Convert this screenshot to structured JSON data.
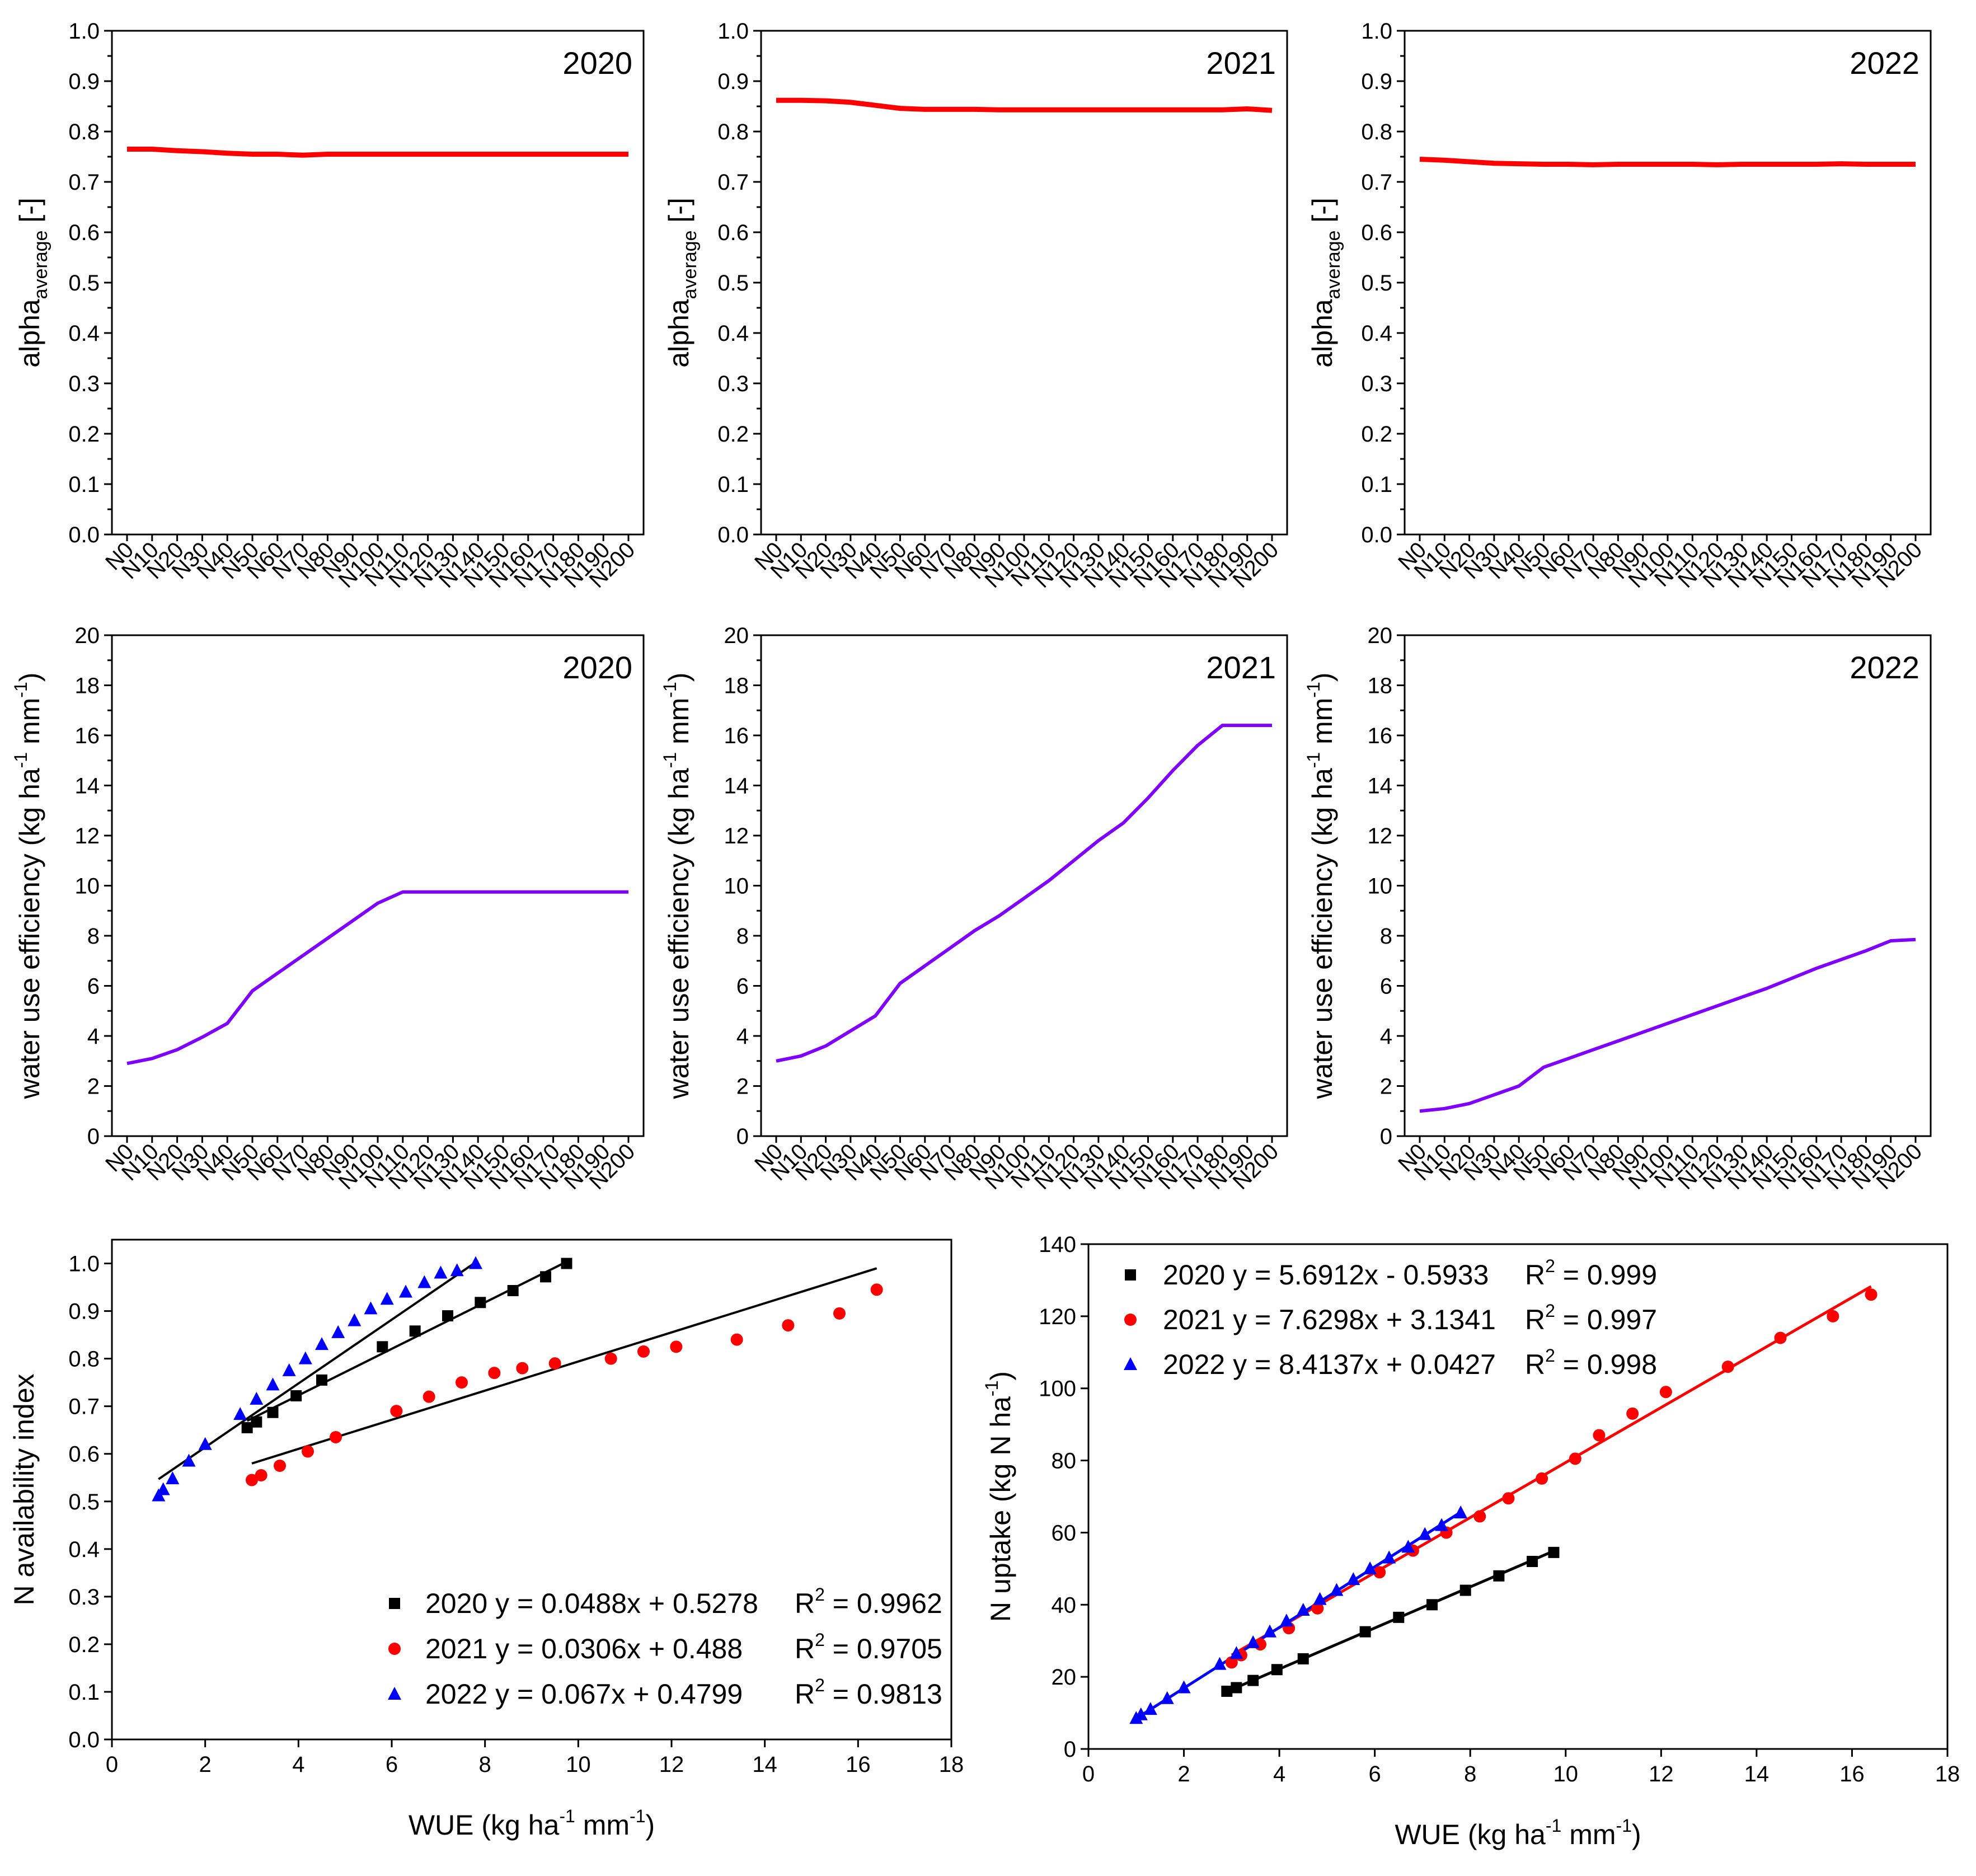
{
  "figure": {
    "colors": {
      "red": "#ff0000",
      "purple": "#8000ff",
      "black": "#000000",
      "blue": "#0000ff"
    }
  },
  "chart_data": [
    {
      "id": "alpha-2020",
      "type": "line",
      "title": "2020",
      "ylabel": "alpha",
      "ylabel_sub": "average",
      "ylabel_suffix": "[-]",
      "ylim": [
        0,
        1.0
      ],
      "yticks": [
        "0.0",
        "0.1",
        "0.2",
        "0.3",
        "0.4",
        "0.5",
        "0.6",
        "0.7",
        "0.8",
        "0.9",
        "1.0"
      ],
      "categories": [
        "N0",
        "N10",
        "N20",
        "N30",
        "N40",
        "N50",
        "N60",
        "N70",
        "N80",
        "N90",
        "N100",
        "N110",
        "N120",
        "N130",
        "N140",
        "N150",
        "N160",
        "N170",
        "N180",
        "N190",
        "N200"
      ],
      "series": [
        {
          "name": "alpha average 2020",
          "color": "#ff0000",
          "values": [
            0.765,
            0.765,
            0.762,
            0.76,
            0.757,
            0.755,
            0.755,
            0.753,
            0.755,
            0.755,
            0.755,
            0.755,
            0.755,
            0.755,
            0.755,
            0.755,
            0.755,
            0.755,
            0.755,
            0.755,
            0.755
          ]
        }
      ]
    },
    {
      "id": "alpha-2021",
      "type": "line",
      "title": "2021",
      "ylabel": "alpha",
      "ylabel_sub": "average",
      "ylabel_suffix": "[-]",
      "ylim": [
        0,
        1.0
      ],
      "yticks": [
        "0.0",
        "0.1",
        "0.2",
        "0.3",
        "0.4",
        "0.5",
        "0.6",
        "0.7",
        "0.8",
        "0.9",
        "1.0"
      ],
      "categories": [
        "N0",
        "N10",
        "N20",
        "N30",
        "N40",
        "N50",
        "N60",
        "N70",
        "N80",
        "N90",
        "N100",
        "N110",
        "N120",
        "N130",
        "N140",
        "N150",
        "N160",
        "N170",
        "N180",
        "N190",
        "N200"
      ],
      "series": [
        {
          "name": "alpha average 2021",
          "color": "#ff0000",
          "values": [
            0.862,
            0.862,
            0.861,
            0.858,
            0.852,
            0.846,
            0.844,
            0.844,
            0.844,
            0.843,
            0.843,
            0.843,
            0.843,
            0.843,
            0.843,
            0.843,
            0.843,
            0.843,
            0.843,
            0.845,
            0.842
          ]
        }
      ]
    },
    {
      "id": "alpha-2022",
      "type": "line",
      "title": "2022",
      "ylabel": "alpha",
      "ylabel_sub": "average",
      "ylabel_suffix": "[-]",
      "ylim": [
        0,
        1.0
      ],
      "yticks": [
        "0.0",
        "0.1",
        "0.2",
        "0.3",
        "0.4",
        "0.5",
        "0.6",
        "0.7",
        "0.8",
        "0.9",
        "1.0"
      ],
      "categories": [
        "N0",
        "N10",
        "N20",
        "N30",
        "N40",
        "N50",
        "N60",
        "N70",
        "N80",
        "N90",
        "N100",
        "N110",
        "N120",
        "N130",
        "N140",
        "N150",
        "N160",
        "N170",
        "N180",
        "N190",
        "N200"
      ],
      "series": [
        {
          "name": "alpha average 2022",
          "color": "#ff0000",
          "values": [
            0.745,
            0.743,
            0.74,
            0.737,
            0.736,
            0.735,
            0.735,
            0.734,
            0.735,
            0.735,
            0.735,
            0.735,
            0.734,
            0.735,
            0.735,
            0.735,
            0.735,
            0.736,
            0.735,
            0.735,
            0.735
          ]
        }
      ]
    },
    {
      "id": "wue-2020",
      "type": "line",
      "title": "2020",
      "ylabel": "water use efficiency (kg ha",
      "ylabel_sup1": "-1",
      "ylabel_mid": " mm",
      "ylabel_sup2": "-1",
      "ylabel_end": ")",
      "ylim": [
        0,
        20
      ],
      "yticks": [
        "0",
        "2",
        "4",
        "6",
        "8",
        "10",
        "12",
        "14",
        "16",
        "18",
        "20"
      ],
      "categories": [
        "N0",
        "N10",
        "N20",
        "N30",
        "N40",
        "N50",
        "N60",
        "N70",
        "N80",
        "N90",
        "N100",
        "N110",
        "N120",
        "N130",
        "N140",
        "N150",
        "N160",
        "N170",
        "N180",
        "N190",
        "N200"
      ],
      "series": [
        {
          "name": "WUE 2020",
          "color": "#8000ff",
          "values": [
            2.9,
            3.1,
            3.45,
            3.95,
            4.5,
            5.8,
            6.5,
            7.2,
            7.9,
            8.6,
            9.3,
            9.75,
            9.75,
            9.75,
            9.75,
            9.75,
            9.75,
            9.75,
            9.75,
            9.75,
            9.75
          ]
        }
      ]
    },
    {
      "id": "wue-2021",
      "type": "line",
      "title": "2021",
      "ylabel": "water use efficiency (kg ha",
      "ylabel_sup1": "-1",
      "ylabel_mid": " mm",
      "ylabel_sup2": "-1",
      "ylabel_end": ")",
      "ylim": [
        0,
        20
      ],
      "yticks": [
        "0",
        "2",
        "4",
        "6",
        "8",
        "10",
        "12",
        "14",
        "16",
        "18",
        "20"
      ],
      "categories": [
        "N0",
        "N10",
        "N20",
        "N30",
        "N40",
        "N50",
        "N60",
        "N70",
        "N80",
        "N90",
        "N100",
        "N110",
        "N120",
        "N130",
        "N140",
        "N150",
        "N160",
        "N170",
        "N180",
        "N190",
        "N200"
      ],
      "series": [
        {
          "name": "WUE 2021",
          "color": "#8000ff",
          "values": [
            3.0,
            3.2,
            3.6,
            4.2,
            4.8,
            6.1,
            6.8,
            7.5,
            8.2,
            8.8,
            9.5,
            10.2,
            11.0,
            11.8,
            12.5,
            13.5,
            14.6,
            15.6,
            16.4,
            16.4,
            16.4
          ]
        }
      ]
    },
    {
      "id": "wue-2022",
      "type": "line",
      "title": "2022",
      "ylabel": "water use efficiency (kg ha",
      "ylabel_sup1": "-1",
      "ylabel_mid": " mm",
      "ylabel_sup2": "-1",
      "ylabel_end": ")",
      "ylim": [
        0,
        20
      ],
      "yticks": [
        "0",
        "2",
        "4",
        "6",
        "8",
        "10",
        "12",
        "14",
        "16",
        "18",
        "20"
      ],
      "categories": [
        "N0",
        "N10",
        "N20",
        "N30",
        "N40",
        "N50",
        "N60",
        "N70",
        "N80",
        "N90",
        "N100",
        "N110",
        "N120",
        "N130",
        "N140",
        "N150",
        "N160",
        "N170",
        "N180",
        "N190",
        "N200"
      ],
      "series": [
        {
          "name": "WUE 2022",
          "color": "#8000ff",
          "values": [
            1.0,
            1.1,
            1.3,
            1.65,
            2.0,
            2.75,
            3.1,
            3.45,
            3.8,
            4.15,
            4.5,
            4.85,
            5.2,
            5.55,
            5.9,
            6.3,
            6.7,
            7.05,
            7.4,
            7.8,
            7.85
          ]
        }
      ]
    },
    {
      "id": "n-availability",
      "type": "scatter",
      "xlabel": "WUE (kg ha",
      "xlabel_sup1": "-1",
      "xlabel_mid": " mm",
      "xlabel_sup2": "-1",
      "xlabel_end": ")",
      "ylabel": "N availability index",
      "xlim": [
        0,
        18
      ],
      "ylim": [
        0,
        1.05
      ],
      "xticks": [
        "0",
        "2",
        "4",
        "6",
        "8",
        "10",
        "12",
        "14",
        "16",
        "18"
      ],
      "yticks": [
        "0.0",
        "0.1",
        "0.2",
        "0.3",
        "0.4",
        "0.5",
        "0.6",
        "0.7",
        "0.8",
        "0.9",
        "1.0"
      ],
      "series": [
        {
          "name": "2020",
          "marker": "square",
          "color": "#000000",
          "equation": "2020 y = 0.0488x + 0.5278",
          "r2_label": "R",
          "r2_sup": "2",
          "r2_value": " = 0.9962",
          "slope": 0.0488,
          "intercept": 0.5278,
          "fit_range": [
            2.9,
            9.75
          ],
          "x": [
            2.9,
            3.1,
            3.45,
            3.95,
            4.5,
            5.8,
            6.5,
            7.2,
            7.9,
            8.6,
            9.3,
            9.75
          ],
          "y": [
            0.655,
            0.667,
            0.687,
            0.722,
            0.755,
            0.825,
            0.858,
            0.89,
            0.918,
            0.943,
            0.972,
            1.0
          ]
        },
        {
          "name": "2021",
          "marker": "circle",
          "color": "#ff0000",
          "equation": "2021 y = 0.0306x + 0.488",
          "r2_label": "R",
          "r2_sup": "2",
          "r2_value": " = 0.9705",
          "slope": 0.0306,
          "intercept": 0.488,
          "fit_range": [
            3.0,
            16.4
          ],
          "x": [
            3.0,
            3.2,
            3.6,
            4.2,
            4.8,
            6.1,
            6.8,
            7.5,
            8.2,
            8.8,
            9.5,
            10.7,
            11.4,
            12.1,
            13.4,
            14.5,
            15.6,
            16.4
          ],
          "y": [
            0.545,
            0.555,
            0.575,
            0.605,
            0.635,
            0.69,
            0.72,
            0.75,
            0.77,
            0.78,
            0.79,
            0.8,
            0.815,
            0.825,
            0.84,
            0.87,
            0.895,
            0.945
          ]
        },
        {
          "name": "2022",
          "marker": "triangle",
          "color": "#0000ff",
          "equation": "2022 y = 0.067x + 0.4799",
          "r2_label": "R",
          "r2_sup": "2",
          "r2_value": " = 0.9813",
          "slope": 0.067,
          "intercept": 0.4799,
          "fit_range": [
            1.0,
            7.85
          ],
          "x": [
            1.0,
            1.1,
            1.3,
            1.65,
            2.0,
            2.75,
            3.1,
            3.45,
            3.8,
            4.15,
            4.5,
            4.85,
            5.2,
            5.55,
            5.9,
            6.3,
            6.7,
            7.05,
            7.4,
            7.8
          ],
          "y": [
            0.512,
            0.525,
            0.548,
            0.585,
            0.62,
            0.683,
            0.715,
            0.745,
            0.775,
            0.8,
            0.83,
            0.855,
            0.88,
            0.905,
            0.925,
            0.94,
            0.96,
            0.98,
            0.985,
            1.0
          ]
        }
      ]
    },
    {
      "id": "n-uptake",
      "type": "scatter",
      "xlabel": "WUE (kg ha",
      "xlabel_sup1": "-1",
      "xlabel_mid": " mm",
      "xlabel_sup2": "-1",
      "xlabel_end": ")",
      "ylabel": "N uptake (kg N ha",
      "ylabel_sup": "-1",
      "ylabel_end": ")",
      "xlim": [
        0,
        18
      ],
      "ylim": [
        0,
        140
      ],
      "xticks": [
        "0",
        "2",
        "4",
        "6",
        "8",
        "10",
        "12",
        "14",
        "16",
        "18"
      ],
      "yticks": [
        "0",
        "20",
        "40",
        "60",
        "80",
        "100",
        "120",
        "140"
      ],
      "series": [
        {
          "name": "2020",
          "marker": "square",
          "color": "#000000",
          "equation": "2020 y = 5.6912x - 0.5933",
          "r2_label": "R",
          "r2_sup": "2",
          "r2_value": " = 0.999",
          "slope": 5.6912,
          "intercept": -0.5933,
          "fit_range": [
            2.9,
            9.75
          ],
          "x": [
            2.9,
            3.1,
            3.45,
            3.95,
            4.5,
            5.8,
            6.5,
            7.2,
            7.9,
            8.6,
            9.3,
            9.75
          ],
          "y": [
            16,
            17,
            19,
            22,
            25,
            32.5,
            36.5,
            40,
            44,
            48,
            52,
            54.5
          ]
        },
        {
          "name": "2021",
          "marker": "circle",
          "color": "#ff0000",
          "equation": "2021 y = 7.6298x + 3.1341",
          "r2_label": "R",
          "r2_sup": "2",
          "r2_value": " = 0.997",
          "slope": 7.6298,
          "intercept": 3.1341,
          "fit_range": [
            3.0,
            16.4
          ],
          "x": [
            3.0,
            3.2,
            3.6,
            4.2,
            4.8,
            6.1,
            6.8,
            7.5,
            8.2,
            8.8,
            9.5,
            10.2,
            10.7,
            11.4,
            12.1,
            13.4,
            14.5,
            15.6,
            16.4
          ],
          "y": [
            24,
            26,
            29,
            33.5,
            39,
            49,
            55,
            60,
            64.5,
            69.5,
            75,
            80.5,
            87,
            93,
            99,
            106,
            114,
            120,
            126
          ]
        },
        {
          "name": "2022",
          "marker": "triangle",
          "color": "#0000ff",
          "equation": "2022 y = 8.4137x + 0.0427",
          "r2_label": "R",
          "r2_sup": "2",
          "r2_value": " = 0.998",
          "slope": 8.4137,
          "intercept": 0.0427,
          "fit_range": [
            1.0,
            7.85
          ],
          "x": [
            1.0,
            1.1,
            1.3,
            1.65,
            2.0,
            2.75,
            3.1,
            3.45,
            3.8,
            4.15,
            4.5,
            4.85,
            5.2,
            5.55,
            5.9,
            6.3,
            6.7,
            7.05,
            7.4,
            7.8
          ],
          "y": [
            8.5,
            9.5,
            11,
            14,
            17,
            23.5,
            26.5,
            29.5,
            32.5,
            35.5,
            38.5,
            41.5,
            44,
            47,
            50,
            53,
            56,
            59.5,
            62,
            65.5
          ]
        }
      ]
    }
  ]
}
